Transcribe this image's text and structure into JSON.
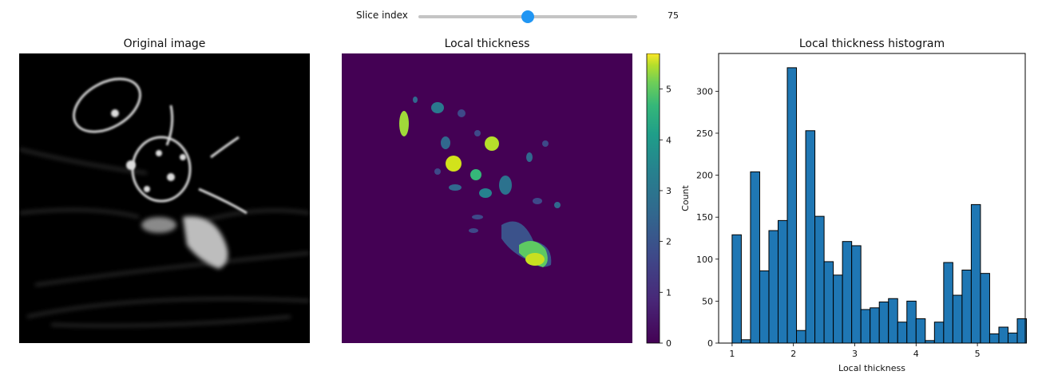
{
  "slider": {
    "label": "Slice index",
    "value": 75,
    "min": 0,
    "max": 150,
    "accent": "#2196f3"
  },
  "panels": {
    "original": {
      "title": "Original image"
    },
    "thickness": {
      "title": "Local thickness"
    },
    "histogram": {
      "title": "Local thickness histogram"
    }
  },
  "colorbar": {
    "ticks": [
      "0",
      "1",
      "2",
      "3",
      "4",
      "5"
    ],
    "range": [
      0,
      5.7
    ],
    "colormap": "viridis"
  },
  "chart_data": {
    "type": "bar",
    "title": "Local thickness histogram",
    "xlabel": "Local thickness",
    "ylabel": "Count",
    "xlim": [
      0.78,
      5.78
    ],
    "ylim": [
      0,
      345
    ],
    "xticks": [
      "1",
      "2",
      "3",
      "4",
      "5"
    ],
    "yticks": [
      "0",
      "50",
      "100",
      "150",
      "200",
      "250",
      "300"
    ],
    "bar_color": "#1f77b4",
    "bin_edges": [
      1.0,
      1.15,
      1.3,
      1.45,
      1.6,
      1.75,
      1.9,
      2.05,
      2.2,
      2.35,
      2.5,
      2.65,
      2.8,
      2.95,
      3.1,
      3.25,
      3.4,
      3.55,
      3.7,
      3.85,
      4.0,
      4.15,
      4.3,
      4.45,
      4.6,
      4.75,
      4.9,
      5.05,
      5.2,
      5.35,
      5.5,
      5.65
    ],
    "values": [
      129,
      4,
      204,
      86,
      134,
      146,
      328,
      15,
      253,
      151,
      97,
      81,
      121,
      116,
      40,
      42,
      49,
      53,
      25,
      50,
      29,
      3,
      25,
      96,
      57,
      87,
      165,
      83,
      11,
      19,
      12,
      29
    ]
  }
}
